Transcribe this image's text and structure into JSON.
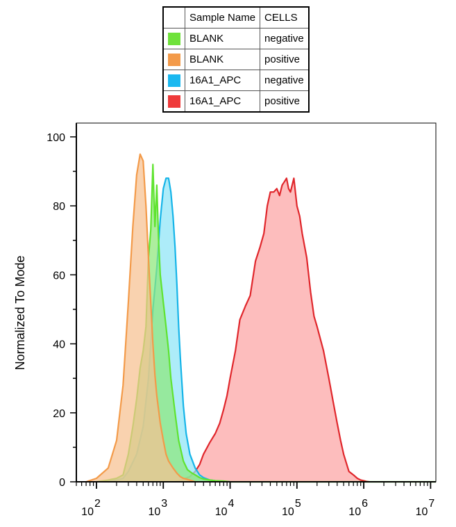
{
  "legend": {
    "headers": [
      "Sample Name",
      "CELLS"
    ],
    "rows": [
      {
        "sample": "BLANK",
        "cells": "negative",
        "color": "#6fe23b"
      },
      {
        "sample": "BLANK",
        "cells": "positive",
        "color": "#f39a49"
      },
      {
        "sample": "16A1_APC",
        "cells": "negative",
        "color": "#1ab8f0"
      },
      {
        "sample": "16A1_APC",
        "cells": "positive",
        "color": "#ef3a3a"
      }
    ]
  },
  "chart_data": {
    "type": "area",
    "xlabel": "",
    "ylabel": "Normalized To Mode",
    "x_scale": "log",
    "xlim": [
      50,
      12000000
    ],
    "ylim": [
      0,
      104
    ],
    "x_ticks": [
      {
        "value": 100,
        "base": "10",
        "exp": "2"
      },
      {
        "value": 1000,
        "base": "10",
        "exp": "3"
      },
      {
        "value": 10000,
        "base": "10",
        "exp": "4"
      },
      {
        "value": 100000,
        "base": "10",
        "exp": "5"
      },
      {
        "value": 1000000,
        "base": "10",
        "exp": "6"
      },
      {
        "value": 10000000,
        "base": "10",
        "exp": "7"
      }
    ],
    "y_ticks": [
      0,
      20,
      40,
      60,
      80,
      100
    ],
    "series": [
      {
        "name": "16A1_APC positive",
        "fill": "#fca3a3",
        "stroke": "#e0262b",
        "x": [
          1500,
          2000,
          2500,
          3000,
          3500,
          4000,
          5000,
          6000,
          7000,
          8000,
          9000,
          10000,
          12000,
          14000,
          17000,
          20000,
          24000,
          28000,
          32000,
          36000,
          40000,
          45000,
          50000,
          55000,
          60000,
          65000,
          70000,
          75000,
          80000,
          90000,
          100000,
          110000,
          120000,
          140000,
          160000,
          180000,
          200000,
          250000,
          300000,
          350000,
          400000,
          450000,
          500000,
          600000,
          700000,
          800000,
          900000,
          1000000,
          1100000,
          1200000
        ],
        "y": [
          0,
          0.8,
          1.5,
          3,
          5,
          8,
          11.5,
          14,
          17,
          21,
          25,
          30,
          38,
          47,
          51,
          54,
          64,
          68,
          72,
          80,
          84,
          84,
          85,
          83,
          86,
          87,
          88,
          85,
          84,
          88,
          80,
          77,
          72,
          65,
          55,
          48,
          45,
          38,
          30,
          23,
          17,
          12,
          8,
          3,
          2,
          1,
          0.5,
          0.3,
          0.1,
          0
        ]
      },
      {
        "name": "16A1_APC negative",
        "fill": "#8ee4f6",
        "stroke": "#15b4e8",
        "x": [
          150,
          200,
          250,
          300,
          400,
          500,
          600,
          700,
          800,
          900,
          1000,
          1100,
          1200,
          1300,
          1400,
          1500,
          1600,
          1700,
          1800,
          2000,
          2200,
          2500,
          3000,
          3500,
          4000,
          5000,
          6000,
          8000,
          10000
        ],
        "y": [
          0,
          0.5,
          1,
          3,
          8,
          16,
          30,
          50,
          62,
          76,
          85,
          88,
          88,
          84,
          77,
          68,
          57,
          45,
          36,
          22,
          14,
          8,
          4,
          2,
          1.2,
          0.5,
          0.3,
          0.1,
          0
        ]
      },
      {
        "name": "BLANK negative",
        "fill": "#8ee87a",
        "stroke": "#5fe32f",
        "x": [
          100,
          150,
          200,
          250,
          300,
          350,
          400,
          450,
          500,
          550,
          600,
          650,
          700,
          750,
          800,
          850,
          900,
          1000,
          1100,
          1200,
          1300,
          1500,
          1700,
          2000,
          2300,
          2700,
          3000,
          3500,
          4000,
          5000,
          6000,
          8000,
          10000,
          12000000
        ],
        "y": [
          0,
          0.5,
          1,
          2,
          8,
          16,
          24,
          33,
          38,
          45,
          65,
          73,
          92,
          74,
          86,
          70,
          60,
          52,
          45,
          38,
          30,
          20,
          12,
          6,
          3.5,
          2.5,
          2,
          1.2,
          0.8,
          0.5,
          0.3,
          0.2,
          0,
          0
        ]
      },
      {
        "name": "BLANK positive",
        "fill": "#f7c090",
        "stroke": "#f39a49",
        "x": [
          70,
          100,
          150,
          200,
          250,
          300,
          350,
          400,
          450,
          500,
          550,
          600,
          650,
          700,
          750,
          800,
          900,
          1000,
          1100,
          1200,
          1400,
          1600,
          1800,
          2000,
          2500,
          3000
        ],
        "y": [
          0,
          1,
          4,
          12,
          28,
          52,
          74,
          89,
          95,
          93,
          80,
          65,
          52,
          40,
          31,
          25,
          17,
          12,
          8,
          6,
          4,
          2.5,
          1.5,
          1,
          0.5,
          0
        ]
      }
    ]
  }
}
